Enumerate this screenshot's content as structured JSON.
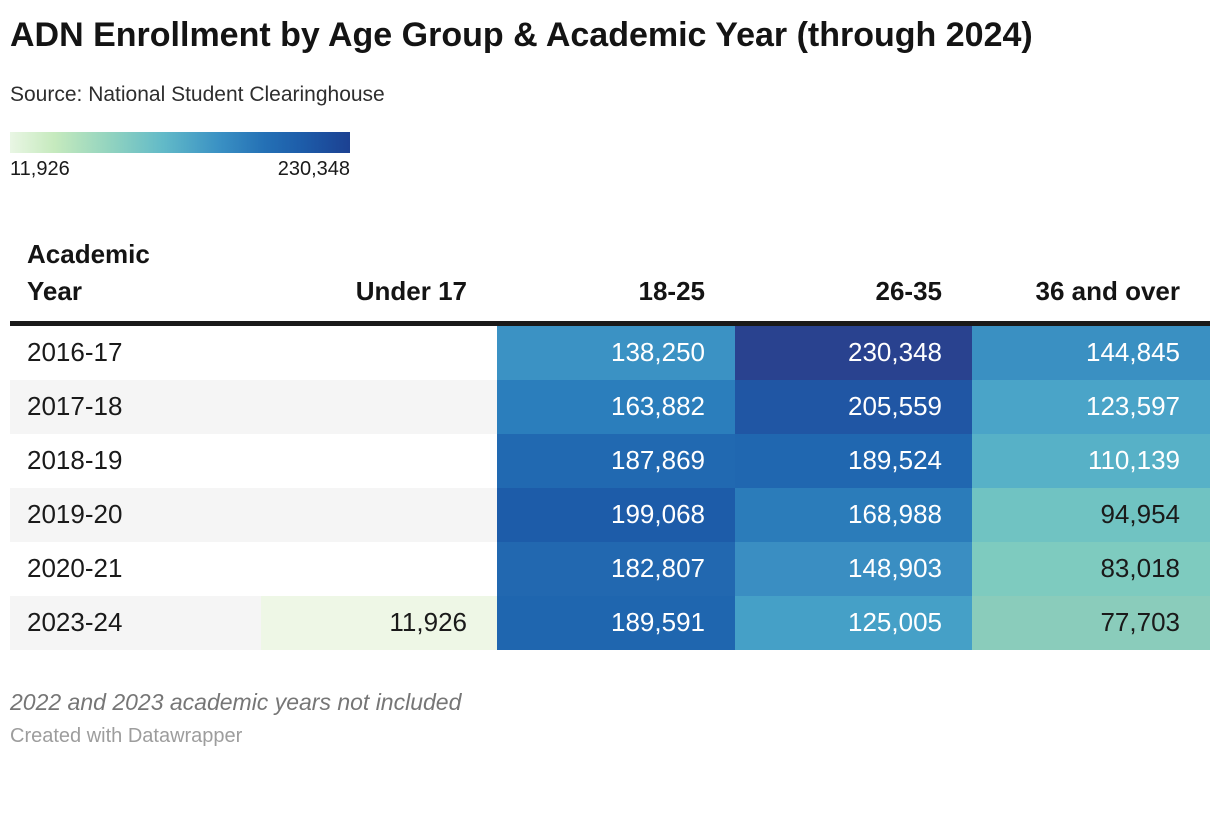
{
  "header": {
    "title": "ADN Enrollment by Age Group & Academic Year (through 2024)",
    "source": "Source: National Student Clearinghouse"
  },
  "legend": {
    "min_label": "11,926",
    "max_label": "230,348",
    "min_color": "#e9f6e4",
    "max_color": "#1c4192"
  },
  "table": {
    "columns": [
      "Academic Year",
      "Under 17",
      "18-25",
      "26-35",
      "36 and over"
    ],
    "rows": [
      {
        "label": "2016-17",
        "cells": [
          {
            "value": "",
            "bg": "transparent",
            "fg": "#1a1a1a"
          },
          {
            "value": "138,250",
            "bg": "#3b92c4",
            "fg": "#ffffff"
          },
          {
            "value": "230,348",
            "bg": "#29428f",
            "fg": "#ffffff"
          },
          {
            "value": "144,845",
            "bg": "#3a90c2",
            "fg": "#ffffff"
          }
        ]
      },
      {
        "label": "2017-18",
        "cells": [
          {
            "value": "",
            "bg": "transparent",
            "fg": "#1a1a1a"
          },
          {
            "value": "163,882",
            "bg": "#2b7ebc",
            "fg": "#ffffff"
          },
          {
            "value": "205,559",
            "bg": "#2056a4",
            "fg": "#ffffff"
          },
          {
            "value": "123,597",
            "bg": "#4aa4c8",
            "fg": "#ffffff"
          }
        ]
      },
      {
        "label": "2018-19",
        "cells": [
          {
            "value": "",
            "bg": "transparent",
            "fg": "#1a1a1a"
          },
          {
            "value": "187,869",
            "bg": "#2169b1",
            "fg": "#ffffff"
          },
          {
            "value": "189,524",
            "bg": "#2067b0",
            "fg": "#ffffff"
          },
          {
            "value": "110,139",
            "bg": "#57b1c7",
            "fg": "#ffffff"
          }
        ]
      },
      {
        "label": "2019-20",
        "cells": [
          {
            "value": "",
            "bg": "transparent",
            "fg": "#1a1a1a"
          },
          {
            "value": "199,068",
            "bg": "#1d5ca9",
            "fg": "#ffffff"
          },
          {
            "value": "168,988",
            "bg": "#2b7cba",
            "fg": "#ffffff"
          },
          {
            "value": "94,954",
            "bg": "#70c3c2",
            "fg": "#1a1a1a"
          }
        ]
      },
      {
        "label": "2020-21",
        "cells": [
          {
            "value": "",
            "bg": "transparent",
            "fg": "#1a1a1a"
          },
          {
            "value": "182,807",
            "bg": "#2268b0",
            "fg": "#ffffff"
          },
          {
            "value": "148,903",
            "bg": "#3a8ec2",
            "fg": "#ffffff"
          },
          {
            "value": "83,018",
            "bg": "#7ecbbf",
            "fg": "#1a1a1a"
          }
        ]
      },
      {
        "label": "2023-24",
        "cells": [
          {
            "value": "11,926",
            "bg": "#eef7e6",
            "fg": "#1a1a1a"
          },
          {
            "value": "189,591",
            "bg": "#1f66af",
            "fg": "#ffffff"
          },
          {
            "value": "125,005",
            "bg": "#45a0c7",
            "fg": "#ffffff"
          },
          {
            "value": "77,703",
            "bg": "#8accbb",
            "fg": "#1a1a1a"
          }
        ]
      }
    ]
  },
  "footer": {
    "note": "2022 and 2023 academic years not included",
    "credit": "Created with Datawrapper"
  },
  "chart_data": {
    "type": "heatmap",
    "title": "ADN Enrollment by Age Group & Academic Year (through 2024)",
    "source": "Source: National Student Clearinghouse",
    "row_header": "Academic Year",
    "rows": [
      "2016-17",
      "2017-18",
      "2018-19",
      "2019-20",
      "2020-21",
      "2023-24"
    ],
    "columns": [
      "Under 17",
      "18-25",
      "26-35",
      "36 and over"
    ],
    "values": [
      [
        null,
        138250,
        230348,
        144845
      ],
      [
        null,
        163882,
        205559,
        123597
      ],
      [
        null,
        187869,
        189524,
        110139
      ],
      [
        null,
        199068,
        168988,
        94954
      ],
      [
        null,
        182807,
        148903,
        83018
      ],
      [
        11926,
        189591,
        125005,
        77703
      ]
    ],
    "color_scale": {
      "min": 11926,
      "max": 230348,
      "gradient": [
        "#e9f6e4",
        "#93d4bf",
        "#3b92c4",
        "#1d5ca9",
        "#1c4192"
      ]
    },
    "legend_position": "top-left",
    "note": "2022 and 2023 academic years not included"
  }
}
